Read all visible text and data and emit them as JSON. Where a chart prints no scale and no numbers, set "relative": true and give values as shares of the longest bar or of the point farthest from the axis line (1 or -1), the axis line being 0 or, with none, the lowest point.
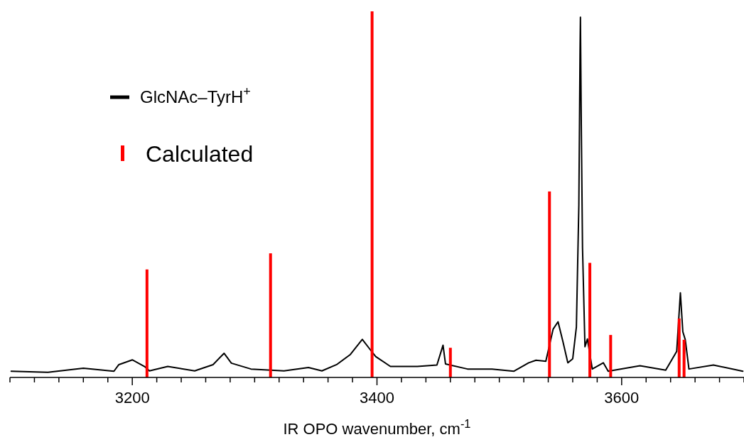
{
  "chart_data": {
    "type": "line",
    "xlabel": "IR OPO wavenumber, cm$^{-1}$",
    "relative": true,
    "legend": "top left",
    "xlim": [
      3100,
      3700
    ],
    "xticks": [
      {
        "value": 3100,
        "label": null
      },
      {
        "value": 3120,
        "label": null
      },
      {
        "value": 3140,
        "label": null
      },
      {
        "value": 3160,
        "label": null
      },
      {
        "value": 3180,
        "label": null
      },
      3200,
      {
        "value": 3220,
        "label": null
      },
      {
        "value": 3240,
        "label": null
      },
      {
        "value": 3260,
        "label": null
      },
      {
        "value": 3280,
        "label": null
      },
      {
        "value": 3300,
        "label": null
      },
      {
        "value": 3320,
        "label": null
      },
      {
        "value": 3340,
        "label": null
      },
      {
        "value": 3360,
        "label": null
      },
      {
        "value": 3380,
        "label": null
      },
      3400,
      {
        "value": 3420,
        "label": null
      },
      {
        "value": 3440,
        "label": null
      },
      {
        "value": 3460,
        "label": null
      },
      {
        "value": 3480,
        "label": null
      },
      {
        "value": 3500,
        "label": null
      },
      {
        "value": 3520,
        "label": null
      },
      {
        "value": 3540,
        "label": null
      },
      {
        "value": 3560,
        "label": null
      },
      {
        "value": 3580,
        "label": null
      },
      3600,
      {
        "value": 3620,
        "label": null
      },
      {
        "value": 3640,
        "label": null
      },
      {
        "value": 3660,
        "label": null
      },
      {
        "value": 3680,
        "label": null
      },
      {
        "value": 3700,
        "label": null
      }
    ],
    "series": [
      {
        "name": "GlcNAc–TyrH$^{+}$",
        "color": "#000000",
        "x": [
          3101,
          3131,
          3160,
          3185,
          3189,
          3200,
          3210,
          3214,
          3229,
          3251,
          3266,
          3275,
          3281,
          3297,
          3324,
          3344,
          3355,
          3367,
          3378,
          3388,
          3394,
          3399,
          3411,
          3433,
          3449,
          3454,
          3456,
          3474,
          3494,
          3512,
          3524,
          3530,
          3538,
          3544,
          3548,
          3552,
          3556,
          3560,
          3563,
          3565,
          3566,
          3566.3,
          3567,
          3568,
          3570,
          3572,
          3576,
          3585,
          3589,
          3615,
          3636,
          3645,
          3648,
          3650,
          3652,
          3655,
          3675,
          3699
        ],
        "values": [
          0.017,
          0.014,
          0.025,
          0.017,
          0.035,
          0.048,
          0.03,
          0.018,
          0.03,
          0.018,
          0.035,
          0.066,
          0.039,
          0.023,
          0.018,
          0.027,
          0.018,
          0.035,
          0.062,
          0.104,
          0.078,
          0.057,
          0.03,
          0.03,
          0.034,
          0.088,
          0.037,
          0.023,
          0.023,
          0.017,
          0.04,
          0.047,
          0.044,
          0.132,
          0.152,
          0.098,
          0.04,
          0.051,
          0.138,
          0.47,
          0.896,
          0.984,
          0.693,
          0.355,
          0.084,
          0.105,
          0.023,
          0.04,
          0.017,
          0.032,
          0.02,
          0.071,
          0.231,
          0.125,
          0.103,
          0.023,
          0.034,
          0.017
        ]
      },
      {
        "name": "Calculated",
        "type": "bar",
        "color": "#ff0000",
        "x": [
          3212,
          3313,
          3396,
          3460,
          3541,
          3574,
          3591,
          3647,
          3651
        ],
        "values": [
          0.295,
          0.339,
          1.0,
          0.081,
          0.508,
          0.313,
          0.116,
          0.161,
          0.103
        ]
      }
    ]
  }
}
